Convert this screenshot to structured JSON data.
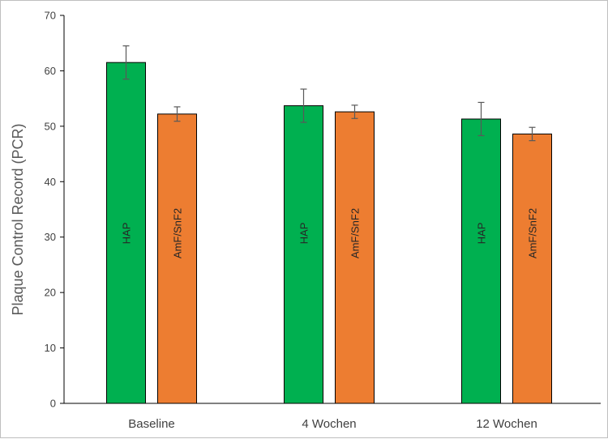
{
  "chart_data": {
    "type": "bar",
    "title": "",
    "xlabel": "",
    "ylabel": "Plaque Control Record (PCR)",
    "categories": [
      "Baseline",
      "4 Wochen",
      "12 Wochen"
    ],
    "ylim": [
      0,
      70
    ],
    "yticks": [
      0,
      10,
      20,
      30,
      40,
      50,
      60,
      70
    ],
    "grid": false,
    "legend": "none",
    "series": [
      {
        "name": "HAP",
        "color": "#00B050",
        "values": [
          61.5,
          53.7,
          51.3
        ],
        "errors": [
          3.0,
          3.0,
          3.0
        ]
      },
      {
        "name": "AmF/SnF2",
        "color": "#ED7D31",
        "values": [
          52.2,
          52.6,
          48.6
        ],
        "errors": [
          1.3,
          1.2,
          1.2
        ]
      }
    ]
  }
}
